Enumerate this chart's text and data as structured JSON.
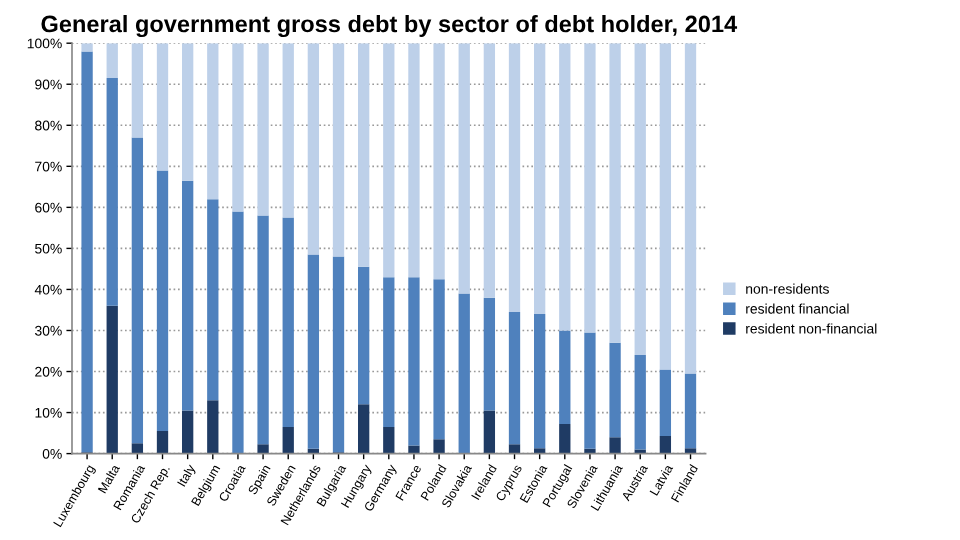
{
  "chart_data": {
    "type": "bar",
    "title": "General government gross debt by sector of debt holder, 2014",
    "categories": [
      "Luxembourg",
      "Malta",
      "Romania",
      "Czech Rep.",
      "Italy",
      "Belgium",
      "Croatia",
      "Spain",
      "Sweden",
      "Netherlands",
      "Bulgaria",
      "Hungary",
      "Germany",
      "France",
      "Poland",
      "Slovakia",
      "Ireland",
      "Cyprus",
      "Estonia",
      "Portugal",
      "Slovenia",
      "Lithuania",
      "Austria",
      "Latvia",
      "Finland"
    ],
    "stacked": true,
    "series": [
      {
        "name": "resident non-financial",
        "color": "#1f3b64",
        "values": [
          0.3,
          36,
          2.5,
          5.5,
          10.5,
          13,
          0,
          2.3,
          6.5,
          1.2,
          0.3,
          12,
          6.5,
          2,
          3.5,
          0,
          10.5,
          2.3,
          1.3,
          7.2,
          1.2,
          4,
          1,
          4.3,
          1.3
        ]
      },
      {
        "name": "resident financial",
        "color": "#4f81bd",
        "values": [
          97.7,
          55.5,
          74.5,
          63.5,
          56,
          49,
          59,
          55.7,
          51,
          47.3,
          47.7,
          33.5,
          36.5,
          41,
          39,
          39,
          27.5,
          32.2,
          32.7,
          22.8,
          28.3,
          23,
          23,
          16.2,
          18.2
        ]
      },
      {
        "name": "non-residents",
        "color": "#bdd0e9",
        "values": [
          2,
          8.5,
          23,
          31,
          33.5,
          38,
          41,
          42,
          42.5,
          51.5,
          52,
          54.5,
          57,
          57,
          57.5,
          61,
          62,
          65.5,
          66,
          70,
          70.5,
          73,
          76,
          79.5,
          80.5
        ]
      }
    ],
    "ylim": [
      0,
      100
    ],
    "yticks": [
      {
        "value": 0,
        "label": "0%"
      },
      {
        "value": 10,
        "label": "10%"
      },
      {
        "value": 20,
        "label": "20%"
      },
      {
        "value": 30,
        "label": "30%"
      },
      {
        "value": 40,
        "label": "40%"
      },
      {
        "value": 50,
        "label": "50%"
      },
      {
        "value": 60,
        "label": "60%"
      },
      {
        "value": 70,
        "label": "70%"
      },
      {
        "value": 80,
        "label": "80%"
      },
      {
        "value": 90,
        "label": "90%"
      },
      {
        "value": 100,
        "label": "100%"
      }
    ],
    "grid": "y",
    "legend": "right"
  }
}
